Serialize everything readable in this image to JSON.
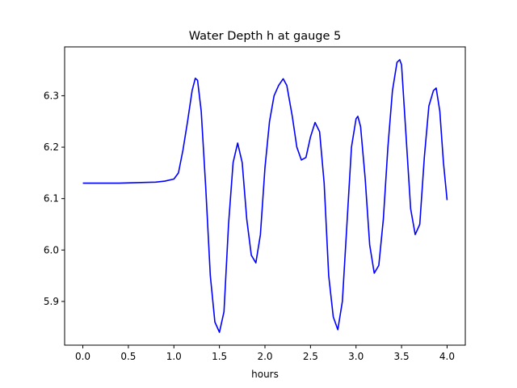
{
  "chart_data": {
    "type": "line",
    "title": "Water Depth h at gauge 5",
    "xlabel": "hours",
    "ylabel": "",
    "xlim": [
      -0.2,
      4.2
    ],
    "ylim": [
      5.815,
      6.395
    ],
    "xticks": [
      0.0,
      0.5,
      1.0,
      1.5,
      2.0,
      2.5,
      3.0,
      3.5,
      4.0
    ],
    "xtick_labels": [
      "0.0",
      "0.5",
      "1.0",
      "1.5",
      "2.0",
      "2.5",
      "3.0",
      "3.5",
      "4.0"
    ],
    "yticks": [
      5.9,
      6.0,
      6.1,
      6.2,
      6.3
    ],
    "ytick_labels": [
      "5.9",
      "6.0",
      "6.1",
      "6.2",
      "6.3"
    ],
    "grid": false,
    "series": [
      {
        "color": "#0000ff",
        "x": [
          0.0,
          0.2,
          0.4,
          0.6,
          0.8,
          0.9,
          1.0,
          1.05,
          1.1,
          1.15,
          1.2,
          1.235,
          1.26,
          1.3,
          1.35,
          1.4,
          1.45,
          1.5,
          1.55,
          1.6,
          1.65,
          1.7,
          1.75,
          1.8,
          1.85,
          1.9,
          1.95,
          2.0,
          2.05,
          2.1,
          2.15,
          2.2,
          2.24,
          2.3,
          2.35,
          2.4,
          2.45,
          2.5,
          2.55,
          2.6,
          2.65,
          2.7,
          2.75,
          2.8,
          2.85,
          2.9,
          2.95,
          3.0,
          3.02,
          3.05,
          3.1,
          3.15,
          3.2,
          3.25,
          3.3,
          3.35,
          3.4,
          3.45,
          3.48,
          3.5,
          3.55,
          3.6,
          3.65,
          3.7,
          3.75,
          3.8,
          3.85,
          3.88,
          3.92,
          3.96,
          4.0
        ],
        "y": [
          6.13,
          6.13,
          6.13,
          6.131,
          6.132,
          6.134,
          6.138,
          6.15,
          6.195,
          6.25,
          6.31,
          6.334,
          6.33,
          6.27,
          6.12,
          5.95,
          5.86,
          5.84,
          5.88,
          6.05,
          6.17,
          6.208,
          6.17,
          6.06,
          5.99,
          5.975,
          6.03,
          6.16,
          6.25,
          6.3,
          6.32,
          6.333,
          6.32,
          6.26,
          6.2,
          6.175,
          6.18,
          6.22,
          6.248,
          6.23,
          6.13,
          5.95,
          5.87,
          5.845,
          5.9,
          6.05,
          6.2,
          6.255,
          6.26,
          6.24,
          6.14,
          6.01,
          5.955,
          5.97,
          6.06,
          6.2,
          6.31,
          6.365,
          6.37,
          6.36,
          6.22,
          6.08,
          6.03,
          6.05,
          6.18,
          6.28,
          6.31,
          6.315,
          6.27,
          6.17,
          6.097
        ]
      }
    ]
  }
}
